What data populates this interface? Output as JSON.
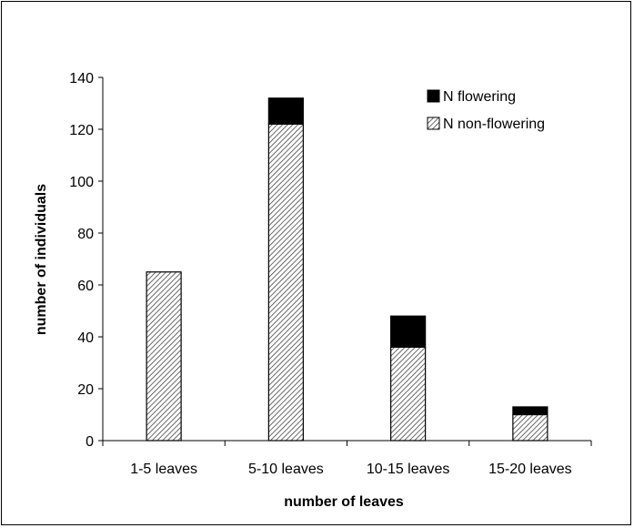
{
  "chart_data": {
    "type": "bar",
    "stacked": true,
    "categories": [
      "1-5 leaves",
      "5-10 leaves",
      "10-15 leaves",
      "15-20 leaves"
    ],
    "series": [
      {
        "name": "N non-flowering",
        "values": [
          65,
          122,
          36,
          10
        ],
        "color": "#ffffff",
        "pattern": "diagonal-hatch"
      },
      {
        "name": "N flowering",
        "values": [
          0,
          10,
          12,
          3
        ],
        "color": "#000000"
      }
    ],
    "xlabel": "number of leaves",
    "ylabel": "number of individuals",
    "ylim": [
      0,
      140
    ],
    "yticks": [
      0,
      20,
      40,
      60,
      80,
      100,
      120,
      140
    ],
    "grid": false,
    "legend_position": "top-right"
  }
}
